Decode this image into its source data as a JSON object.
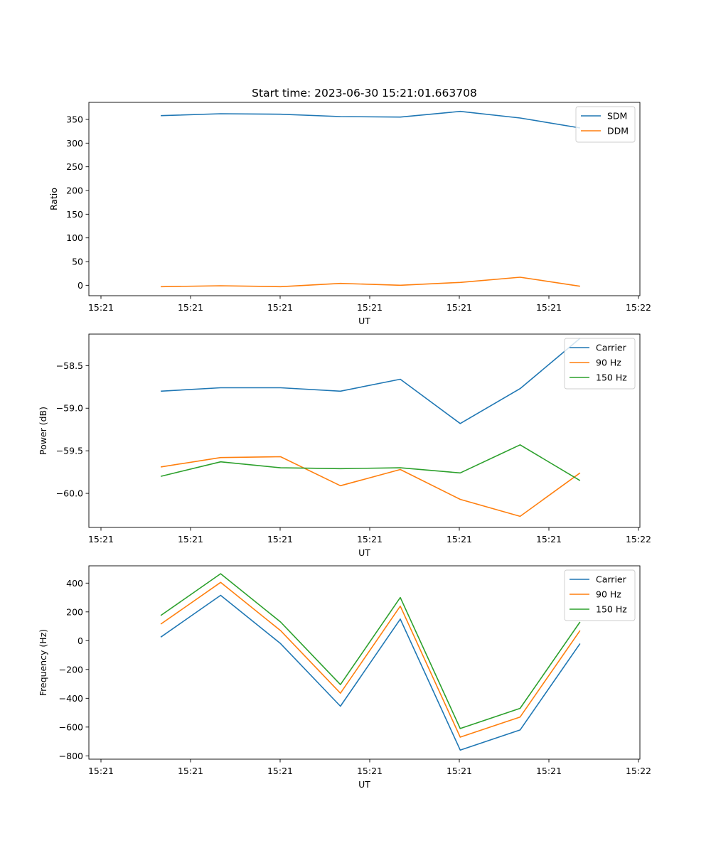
{
  "figure": {
    "title": "Start time: 2023-06-30 15:21:01.663708"
  },
  "colors": {
    "c0": "#1f77b4",
    "c1": "#ff7f0e",
    "c2": "#2ca02c"
  },
  "chart_data": [
    {
      "type": "line",
      "title": "Start time: 2023-06-30 15:21:01.663708",
      "xlabel": "UT",
      "ylabel": "Ratio",
      "x_tick_labels": [
        "15:21",
        "15:21",
        "15:21",
        "15:21",
        "15:21",
        "15:21",
        "15:22"
      ],
      "x": [
        0.5,
        1,
        1.5,
        2,
        2.5,
        3,
        3.5,
        4
      ],
      "xlim": [
        -0.1,
        4.5
      ],
      "ylim": [
        -22,
        386
      ],
      "y_ticks": [
        0,
        50,
        100,
        150,
        200,
        250,
        300,
        350
      ],
      "legend": "top-right",
      "grid": false,
      "series": [
        {
          "name": "SDM",
          "color": "#1f77b4",
          "values": [
            358,
            362,
            361,
            356,
            355,
            367,
            353,
            332
          ]
        },
        {
          "name": "DDM",
          "color": "#ff7f0e",
          "values": [
            -3,
            -1,
            -3,
            4,
            0,
            6,
            17,
            -2
          ]
        }
      ]
    },
    {
      "type": "line",
      "xlabel": "UT",
      "ylabel": "Power (dB)",
      "x_tick_labels": [
        "15:21",
        "15:21",
        "15:21",
        "15:21",
        "15:21",
        "15:21",
        "15:22"
      ],
      "x": [
        0.5,
        1,
        1.5,
        2,
        2.5,
        3,
        3.5,
        4
      ],
      "xlim": [
        -0.1,
        4.5
      ],
      "ylim": [
        -60.4,
        -58.13
      ],
      "y_ticks": [
        -60.0,
        -59.5,
        -59.0,
        -58.5
      ],
      "y_tick_labels": [
        "−60.0",
        "−59.5",
        "−59.0",
        "−58.5"
      ],
      "legend": "top-right",
      "grid": false,
      "series": [
        {
          "name": "Carrier",
          "color": "#1f77b4",
          "values": [
            -58.8,
            -58.76,
            -58.76,
            -58.8,
            -58.66,
            -59.18,
            -58.77,
            -58.18
          ]
        },
        {
          "name": "90 Hz",
          "color": "#ff7f0e",
          "values": [
            -59.69,
            -59.58,
            -59.57,
            -59.91,
            -59.72,
            -60.07,
            -60.27,
            -59.76
          ]
        },
        {
          "name": "150 Hz",
          "color": "#2ca02c",
          "values": [
            -59.8,
            -59.63,
            -59.7,
            -59.71,
            -59.7,
            -59.76,
            -59.43,
            -59.85
          ]
        }
      ]
    },
    {
      "type": "line",
      "xlabel": "UT",
      "ylabel": "Frequency (Hz)",
      "x_tick_labels": [
        "15:21",
        "15:21",
        "15:21",
        "15:21",
        "15:21",
        "15:21",
        "15:22"
      ],
      "x": [
        0.5,
        1,
        1.5,
        2,
        2.5,
        3,
        3.5,
        4
      ],
      "xlim": [
        -0.1,
        4.5
      ],
      "ylim": [
        -823,
        520
      ],
      "y_ticks": [
        -800,
        -600,
        -400,
        -200,
        0,
        200,
        400
      ],
      "y_tick_labels": [
        "−800",
        "−600",
        "−400",
        "−200",
        "0",
        "200",
        "400"
      ],
      "legend": "top-right",
      "grid": false,
      "series": [
        {
          "name": "Carrier",
          "color": "#1f77b4",
          "values": [
            25,
            315,
            -20,
            -455,
            150,
            -760,
            -620,
            -20
          ]
        },
        {
          "name": "90 Hz",
          "color": "#ff7f0e",
          "values": [
            115,
            405,
            70,
            -365,
            240,
            -670,
            -530,
            70
          ]
        },
        {
          "name": "150 Hz",
          "color": "#2ca02c",
          "values": [
            175,
            465,
            130,
            -305,
            300,
            -610,
            -470,
            130
          ]
        }
      ]
    }
  ]
}
